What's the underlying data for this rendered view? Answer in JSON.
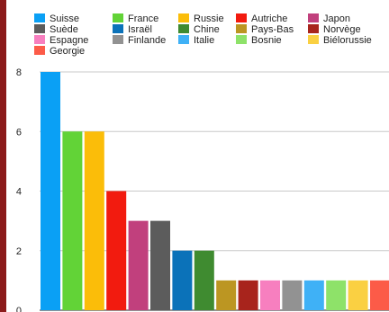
{
  "chart_data": {
    "type": "bar",
    "categories": [
      "Suisse",
      "Suède",
      "Espagne",
      "Georgie",
      "France",
      "Israël",
      "Finlande",
      "Russie",
      "Chine",
      "Italie",
      "Autriche",
      "Pays-Bas",
      "Bosnie",
      "Japon",
      "Norvège",
      "Biélorussie"
    ],
    "bars": [
      {
        "name": "Suisse",
        "value": 8,
        "color": "#0aa0f5"
      },
      {
        "name": "France",
        "value": 6,
        "color": "#62d337"
      },
      {
        "name": "Russie",
        "value": 6,
        "color": "#fbbd09"
      },
      {
        "name": "Autriche",
        "value": 4,
        "color": "#f21b0f"
      },
      {
        "name": "Japon",
        "value": 3,
        "color": "#c1407d"
      },
      {
        "name": "Suède",
        "value": 3,
        "color": "#5c5c5c"
      },
      {
        "name": "Israël",
        "value": 2,
        "color": "#0b72b9"
      },
      {
        "name": "Chine",
        "value": 2,
        "color": "#3f8b30"
      },
      {
        "name": "Pays-Bas",
        "value": 1,
        "color": "#bc9622"
      },
      {
        "name": "Norvège",
        "value": 1,
        "color": "#a8241c"
      },
      {
        "name": "Espagne",
        "value": 1,
        "color": "#f77fbf"
      },
      {
        "name": "Finlande",
        "value": 1,
        "color": "#929292"
      },
      {
        "name": "Italie",
        "value": 1,
        "color": "#3fb1f6"
      },
      {
        "name": "Bosnie",
        "value": 1,
        "color": "#8ee269"
      },
      {
        "name": "Biélorussie",
        "value": 1,
        "color": "#fad042"
      },
      {
        "name": "Georgie",
        "value": 1,
        "color": "#fc5b48"
      }
    ],
    "legend": [
      {
        "name": "Suisse",
        "color": "#0aa0f5"
      },
      {
        "name": "France",
        "color": "#62d337"
      },
      {
        "name": "Russie",
        "color": "#fbbd09"
      },
      {
        "name": "Autriche",
        "color": "#f21b0f"
      },
      {
        "name": "Japon",
        "color": "#c1407d"
      },
      {
        "name": "Suède",
        "color": "#5c5c5c"
      },
      {
        "name": "Israël",
        "color": "#0b72b9"
      },
      {
        "name": "Chine",
        "color": "#3f8b30"
      },
      {
        "name": "Pays-Bas",
        "color": "#bc9622"
      },
      {
        "name": "Norvège",
        "color": "#a8241c"
      },
      {
        "name": "Espagne",
        "color": "#f77fbf"
      },
      {
        "name": "Finlande",
        "color": "#929292"
      },
      {
        "name": "Italie",
        "color": "#3fb1f6"
      },
      {
        "name": "Bosnie",
        "color": "#8ee269"
      },
      {
        "name": "Biélorussie",
        "color": "#fad042"
      },
      {
        "name": "Georgie",
        "color": "#fc5b48"
      }
    ],
    "yticks": [
      0,
      2,
      4,
      6,
      8
    ],
    "ylim": [
      0,
      8
    ],
    "grid": true,
    "legend_position": "top",
    "title": "",
    "xlabel": "",
    "ylabel": ""
  }
}
